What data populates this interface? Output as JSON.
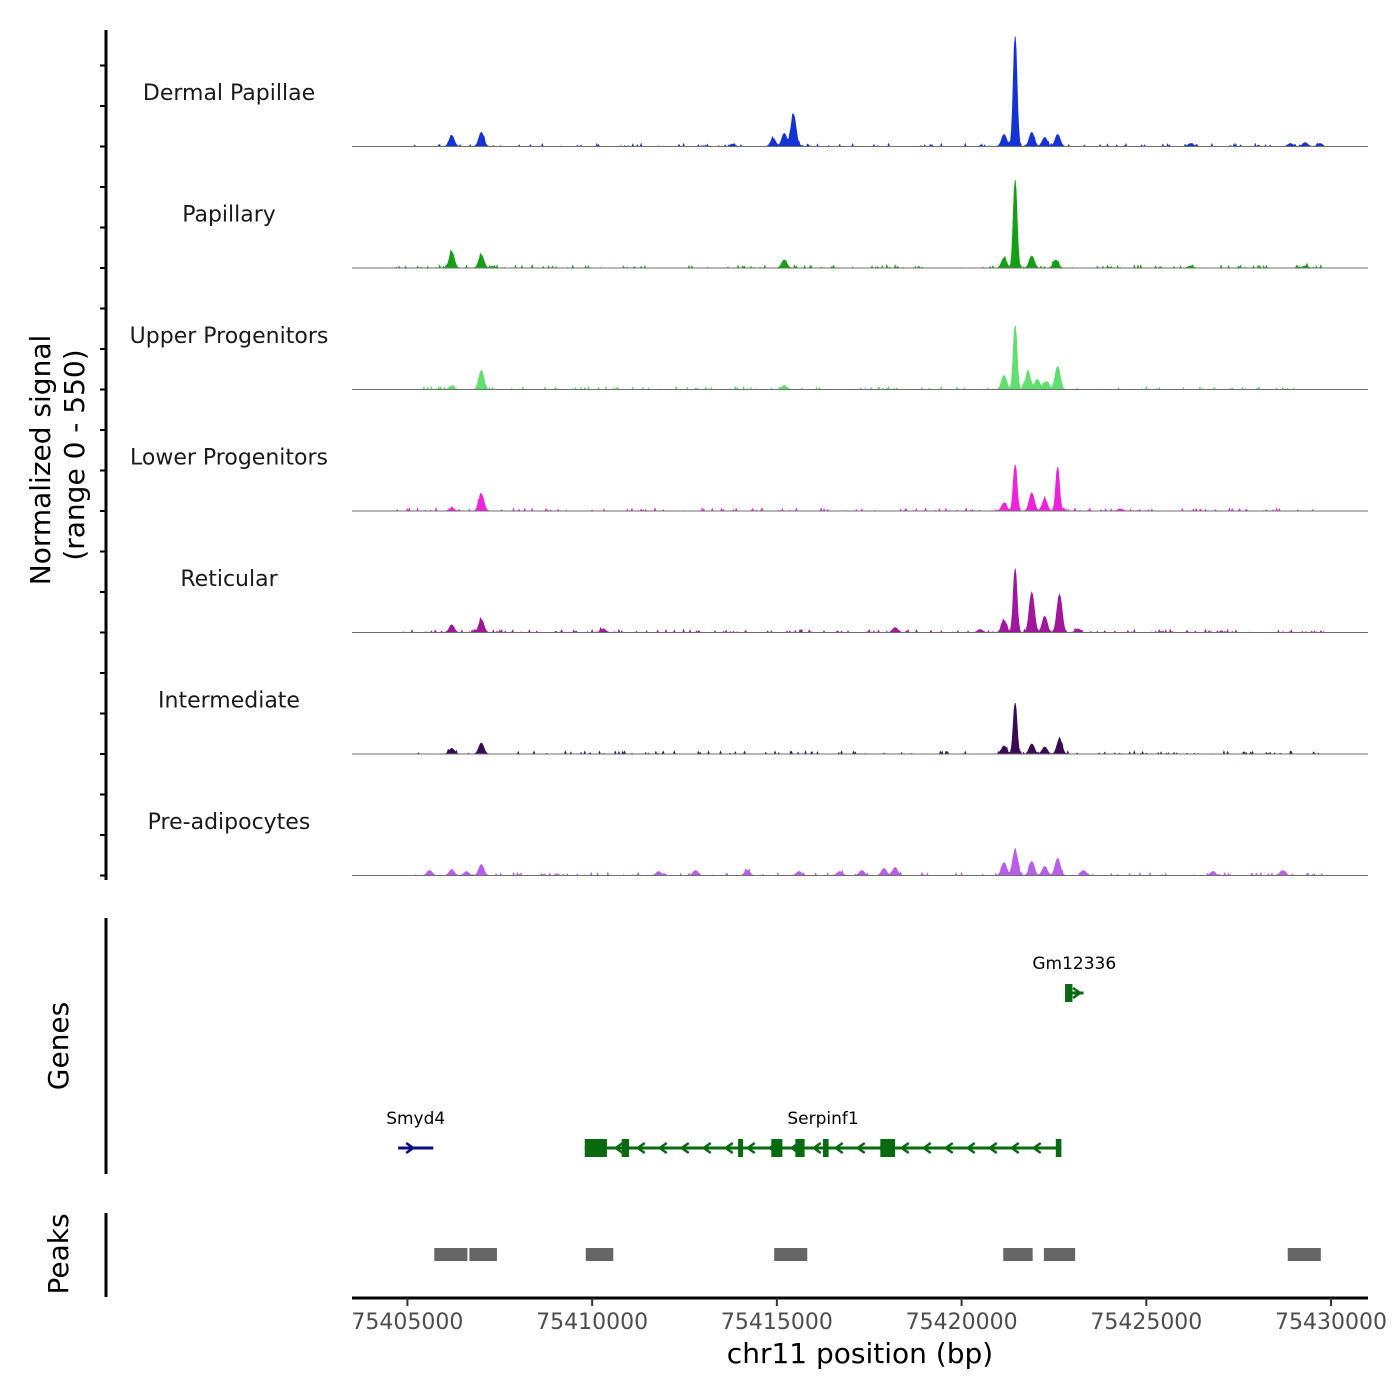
{
  "chart_data": {
    "type": "area",
    "chromosome": "chr11",
    "xlabel": "chr11 position (bp)",
    "ylabel_line1": "Normalized signal",
    "ylabel_line2": "(range 0 - 550)",
    "xlim": [
      75403500,
      75431000
    ],
    "x_ticks": [
      75405000,
      75410000,
      75415000,
      75420000,
      75425000,
      75430000
    ],
    "x_tick_labels": [
      "75405000",
      "75410000",
      "75415000",
      "75420000",
      "75425000",
      "75430000"
    ],
    "signal_range": [
      0,
      550
    ],
    "tracks": [
      {
        "name": "Dermal Papillae",
        "color": "#1533d4",
        "peaks": [
          [
            75406200,
            55
          ],
          [
            75407000,
            70
          ],
          [
            75413800,
            12
          ],
          [
            75414900,
            40
          ],
          [
            75415200,
            65
          ],
          [
            75415450,
            160
          ],
          [
            75421150,
            60
          ],
          [
            75421450,
            550
          ],
          [
            75421900,
            70
          ],
          [
            75422250,
            45
          ],
          [
            75422600,
            60
          ],
          [
            75426200,
            15
          ],
          [
            75428900,
            15
          ],
          [
            75429300,
            20
          ],
          [
            75429700,
            15
          ]
        ]
      },
      {
        "name": "Papillary",
        "color": "#14a014",
        "peaks": [
          [
            75406200,
            80
          ],
          [
            75407000,
            65
          ],
          [
            75415200,
            40
          ],
          [
            75421150,
            50
          ],
          [
            75421450,
            440
          ],
          [
            75421900,
            60
          ],
          [
            75422550,
            40
          ],
          [
            75426200,
            10
          ],
          [
            75429300,
            10
          ]
        ]
      },
      {
        "name": "Upper Progenitors",
        "color": "#5fe06e",
        "peaks": [
          [
            75406200,
            18
          ],
          [
            75407000,
            95
          ],
          [
            75415200,
            20
          ],
          [
            75421150,
            70
          ],
          [
            75421450,
            320
          ],
          [
            75421800,
            85
          ],
          [
            75422050,
            50
          ],
          [
            75422300,
            40
          ],
          [
            75422600,
            115
          ]
        ]
      },
      {
        "name": "Lower Progenitors",
        "color": "#ee22dd",
        "peaks": [
          [
            75406200,
            15
          ],
          [
            75407000,
            85
          ],
          [
            75421150,
            40
          ],
          [
            75421450,
            230
          ],
          [
            75421900,
            90
          ],
          [
            75422250,
            60
          ],
          [
            75422600,
            220
          ],
          [
            75424300,
            10
          ]
        ]
      },
      {
        "name": "Reticular",
        "color": "#a0169c",
        "peaks": [
          [
            75406200,
            38
          ],
          [
            75407000,
            65
          ],
          [
            75410300,
            18
          ],
          [
            75418200,
            25
          ],
          [
            75420500,
            15
          ],
          [
            75421150,
            60
          ],
          [
            75421450,
            320
          ],
          [
            75421900,
            200
          ],
          [
            75422250,
            80
          ],
          [
            75422650,
            190
          ],
          [
            75423150,
            18
          ]
        ]
      },
      {
        "name": "Intermediate",
        "color": "#3a0a55",
        "peaks": [
          [
            75406200,
            28
          ],
          [
            75407000,
            55
          ],
          [
            75421150,
            40
          ],
          [
            75421450,
            255
          ],
          [
            75421900,
            50
          ],
          [
            75422250,
            35
          ],
          [
            75422650,
            75
          ]
        ]
      },
      {
        "name": "Pre-adipocytes",
        "color": "#b95ee8",
        "peaks": [
          [
            75405600,
            25
          ],
          [
            75406200,
            30
          ],
          [
            75406600,
            20
          ],
          [
            75407000,
            55
          ],
          [
            75411800,
            20
          ],
          [
            75412800,
            25
          ],
          [
            75414200,
            25
          ],
          [
            75415600,
            20
          ],
          [
            75416700,
            20
          ],
          [
            75417300,
            25
          ],
          [
            75417900,
            35
          ],
          [
            75418200,
            40
          ],
          [
            75421150,
            65
          ],
          [
            75421450,
            125
          ],
          [
            75421900,
            70
          ],
          [
            75422250,
            45
          ],
          [
            75422600,
            85
          ],
          [
            75423300,
            25
          ],
          [
            75426800,
            20
          ],
          [
            75428700,
            25
          ]
        ]
      }
    ],
    "genes_label": "Genes",
    "genes": [
      {
        "name": "Gm12336",
        "strand": "+",
        "start": 75422800,
        "end": 75423300,
        "row": 1,
        "exons": [
          [
            75422800,
            75423000
          ]
        ]
      },
      {
        "name": "Smyd4",
        "strand": "+",
        "start": 75404750,
        "end": 75405700,
        "row": 2,
        "exons": []
      },
      {
        "name": "Serpinf1",
        "strand": "-",
        "start": 75409800,
        "end": 75422700,
        "row": 2,
        "exons": [
          [
            75409800,
            75410400
          ],
          [
            75410800,
            75411000
          ],
          [
            75413950,
            75414050
          ],
          [
            75414850,
            75415150
          ],
          [
            75415500,
            75415750
          ],
          [
            75416250,
            75416400
          ],
          [
            75417800,
            75418200
          ],
          [
            75422550,
            75422700
          ]
        ]
      }
    ],
    "peaks_label": "Peaks",
    "peak_regions": [
      [
        75405700,
        75406650
      ],
      [
        75406650,
        75407450
      ],
      [
        75409800,
        75410600
      ],
      [
        75414900,
        75415850
      ],
      [
        75421100,
        75421950
      ],
      [
        75422200,
        75423100
      ],
      [
        75428800,
        75429750
      ]
    ]
  }
}
